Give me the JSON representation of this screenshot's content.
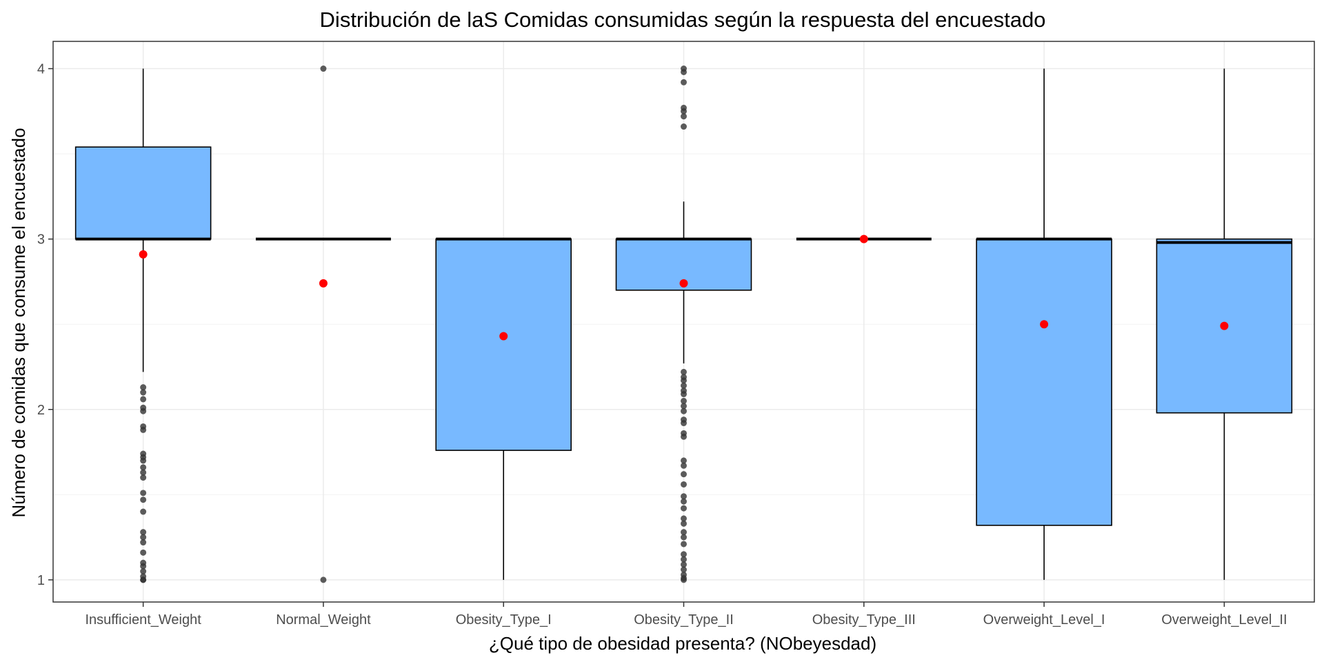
{
  "chart_data": {
    "type": "boxplot",
    "title": "Distribución de laS Comidas consumidas según la respuesta del encuestado",
    "xlabel": "¿Qué tipo de obesidad presenta? (NObeyesdad)",
    "ylabel": "Número de comidas que consume el encuestado",
    "ylim": [
      0.87,
      4.16
    ],
    "y_ticks": [
      1,
      2,
      3,
      4
    ],
    "grid": true,
    "legend": "none",
    "colors": {
      "box_fill": "#78b9ff",
      "box_stroke": "#000000",
      "mean_point": "#ff0000",
      "outlier": "#333333",
      "grid": "#ebebeb"
    },
    "categories": [
      "Insufficient_Weight",
      "Normal_Weight",
      "Obesity_Type_I",
      "Obesity_Type_II",
      "Obesity_Type_III",
      "Overweight_Level_I",
      "Overweight_Level_II"
    ],
    "boxes": [
      {
        "category": "Insufficient_Weight",
        "whisker_low": 2.22,
        "q1": 3.0,
        "median": 3.0,
        "q3": 3.54,
        "whisker_high": 4.0,
        "mean": 2.91,
        "outliers": [
          1.0,
          1.0,
          1.02,
          1.05,
          1.08,
          1.1,
          1.16,
          1.22,
          1.25,
          1.28,
          1.4,
          1.47,
          1.51,
          1.6,
          1.63,
          1.66,
          1.7,
          1.72,
          1.74,
          1.88,
          1.9,
          1.99,
          2.01,
          2.06,
          2.1,
          2.13
        ]
      },
      {
        "category": "Normal_Weight",
        "whisker_low": 3.0,
        "q1": 3.0,
        "median": 3.0,
        "q3": 3.0,
        "whisker_high": 3.0,
        "mean": 2.74,
        "outliers": [
          1.0,
          4.0
        ]
      },
      {
        "category": "Obesity_Type_I",
        "whisker_low": 1.0,
        "q1": 1.76,
        "median": 3.0,
        "q3": 3.0,
        "whisker_high": 3.0,
        "mean": 2.43,
        "outliers": []
      },
      {
        "category": "Obesity_Type_II",
        "whisker_low": 2.27,
        "q1": 2.7,
        "median": 3.0,
        "q3": 3.0,
        "whisker_high": 3.22,
        "mean": 2.74,
        "outliers": [
          1.0,
          1.01,
          1.03,
          1.06,
          1.09,
          1.12,
          1.15,
          1.21,
          1.25,
          1.28,
          1.33,
          1.36,
          1.42,
          1.46,
          1.49,
          1.56,
          1.62,
          1.67,
          1.7,
          1.84,
          1.86,
          1.92,
          1.94,
          1.99,
          2.02,
          2.05,
          2.09,
          2.11,
          2.14,
          2.17,
          2.19,
          2.22,
          3.66,
          3.72,
          3.75,
          3.77,
          3.92,
          3.98,
          4.0
        ]
      },
      {
        "category": "Obesity_Type_III",
        "whisker_low": 3.0,
        "q1": 3.0,
        "median": 3.0,
        "q3": 3.0,
        "whisker_high": 3.0,
        "mean": 3.0,
        "outliers": []
      },
      {
        "category": "Overweight_Level_I",
        "whisker_low": 1.0,
        "q1": 1.32,
        "median": 3.0,
        "q3": 3.0,
        "whisker_high": 4.0,
        "mean": 2.5,
        "outliers": []
      },
      {
        "category": "Overweight_Level_II",
        "whisker_low": 1.0,
        "q1": 1.98,
        "median": 2.98,
        "q3": 3.0,
        "whisker_high": 4.0,
        "mean": 2.49,
        "outliers": []
      }
    ]
  }
}
